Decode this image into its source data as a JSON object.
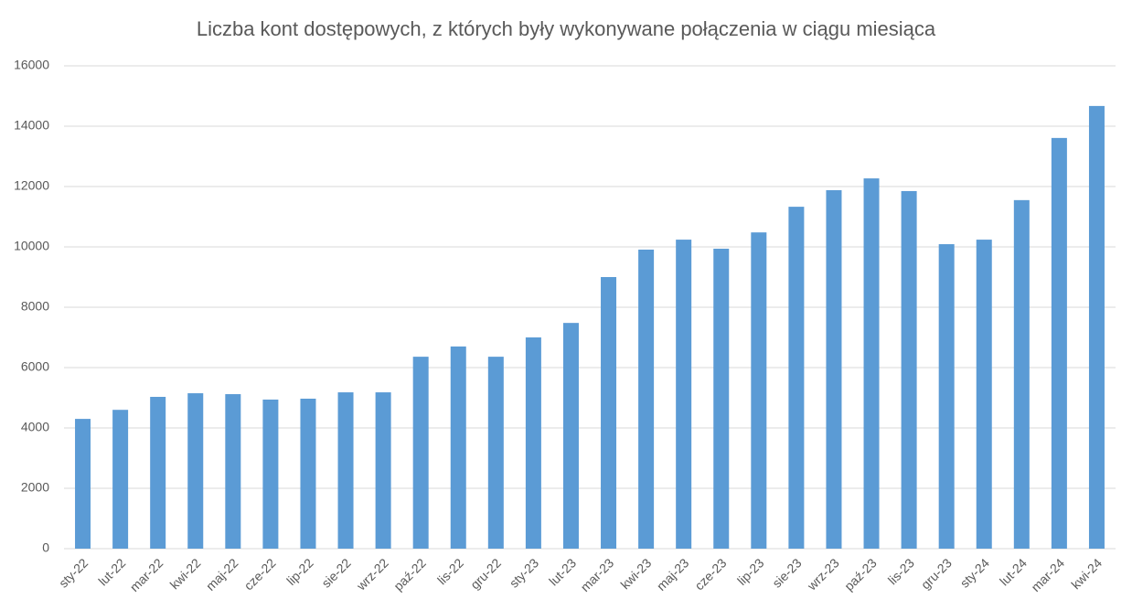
{
  "chart_data": {
    "type": "bar",
    "title": "Liczba kont dostępowych, z których były wykonywane połączenia w ciągu miesiąca",
    "categories": [
      "sty-22",
      "lut-22",
      "mar-22",
      "kwi-22",
      "maj-22",
      "cze-22",
      "lip-22",
      "sie-22",
      "wrz-22",
      "paź-22",
      "lis-22",
      "gru-22",
      "sty-23",
      "lut-23",
      "mar-23",
      "kwi-23",
      "maj-23",
      "cze-23",
      "lip-23",
      "sie-23",
      "wrz-23",
      "paź-23",
      "lis-23",
      "gru-23",
      "sty-24",
      "lut-24",
      "mar-24",
      "kwi-24"
    ],
    "values": [
      4300,
      4600,
      5030,
      5150,
      5120,
      4940,
      4970,
      5180,
      5180,
      6360,
      6700,
      6360,
      7000,
      7480,
      9000,
      9910,
      10240,
      9940,
      10480,
      11330,
      11880,
      12270,
      11850,
      10090,
      10240,
      11550,
      13610,
      14670
    ],
    "color": "#5b9bd5",
    "ylim": [
      0,
      16000
    ],
    "yticks": [
      0,
      2000,
      4000,
      6000,
      8000,
      10000,
      12000,
      14000,
      16000
    ],
    "grid": true
  }
}
